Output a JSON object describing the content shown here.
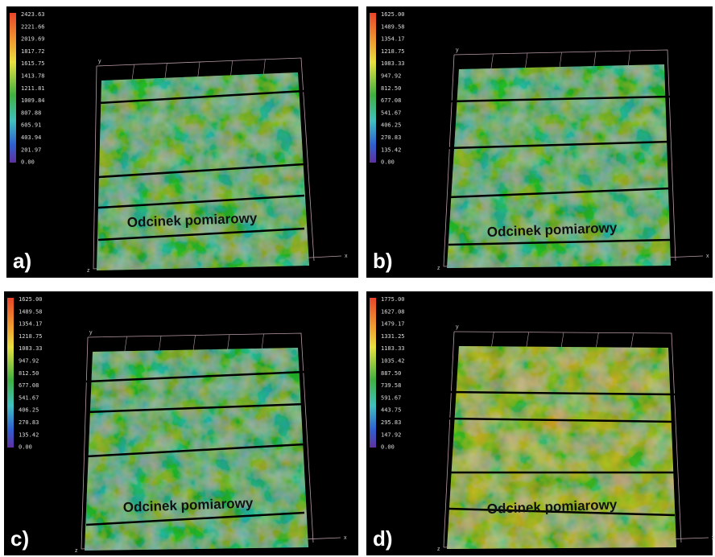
{
  "panels": [
    {
      "label": "a)",
      "scale": [
        "2423.63",
        "2221.66",
        "2019.69",
        "1817.72",
        "1615.75",
        "1413.78",
        "1211.81",
        "1009.84",
        "807.88",
        "605.91",
        "403.94",
        "201.97",
        "0.00"
      ],
      "annotation": "Odcinek pomiarowy",
      "axes": {
        "x": "x",
        "y": "y",
        "z": "z"
      }
    },
    {
      "label": "b)",
      "scale": [
        "1625.00",
        "1489.58",
        "1354.17",
        "1218.75",
        "1083.33",
        "947.92",
        "812.50",
        "677.08",
        "541.67",
        "406.25",
        "270.83",
        "135.42",
        "0.00"
      ],
      "annotation": "Odcinek pomiarowy",
      "axes": {
        "x": "x",
        "y": "y",
        "z": "z"
      }
    },
    {
      "label": "c)",
      "scale": [
        "1625.00",
        "1489.58",
        "1354.17",
        "1218.75",
        "1083.33",
        "947.92",
        "812.50",
        "677.08",
        "541.67",
        "406.25",
        "270.83",
        "135.42",
        "0.00"
      ],
      "annotation": "Odcinek pomiarowy",
      "axes": {
        "x": "x",
        "y": "y",
        "z": "z"
      }
    },
    {
      "label": "d)",
      "scale": [
        "1775.00",
        "1627.08",
        "1479.17",
        "1331.25",
        "1183.33",
        "1035.42",
        "887.50",
        "739.58",
        "591.67",
        "443.75",
        "295.83",
        "147.92",
        "0.00"
      ],
      "annotation": "Odcinek pomiarowy",
      "axes": {
        "x": "x",
        "y": "y",
        "z": "z"
      }
    }
  ]
}
